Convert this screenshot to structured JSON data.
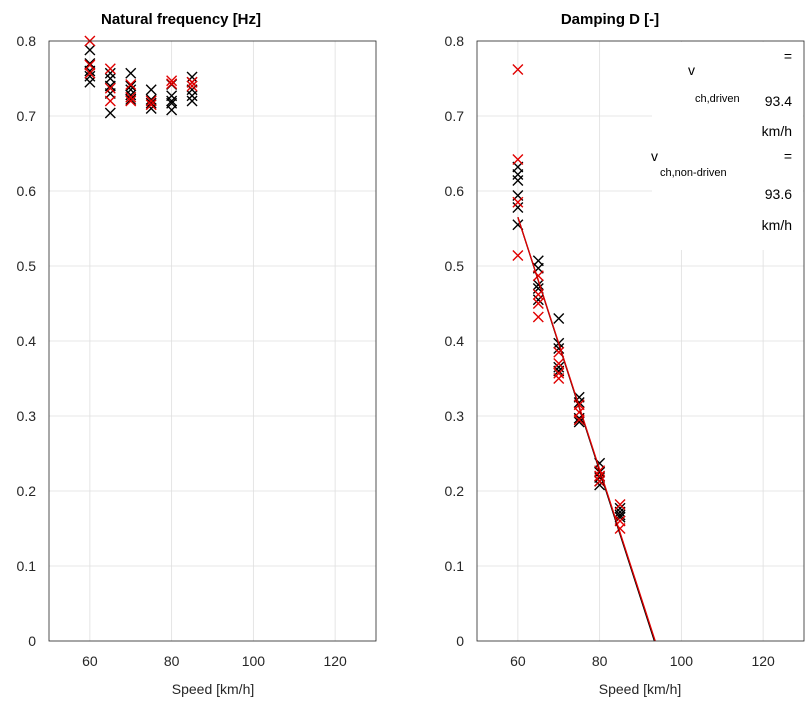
{
  "chart_data": [
    {
      "type": "scatter",
      "title": "Natural frequency [Hz]",
      "xlabel": "Speed [km/h]",
      "ylabel": "",
      "xlim": [
        50,
        130
      ],
      "ylim": [
        0,
        0.8
      ],
      "xticks": [
        "60",
        "80",
        "100",
        "120"
      ],
      "yticks": [
        "0",
        "0.1",
        "0.2",
        "0.3",
        "0.4",
        "0.5",
        "0.6",
        "0.7",
        "0.8"
      ],
      "grid": true,
      "colors": {
        "driven": "#000000",
        "non_driven": "#e00000"
      },
      "series": [
        {
          "color": "#000000",
          "marker": "x",
          "x": [
            60,
            60,
            60,
            60,
            60,
            65,
            65,
            65,
            65,
            65,
            70,
            70,
            70,
            70,
            70,
            75,
            75,
            75,
            75,
            80,
            80,
            80,
            80,
            80,
            85,
            85,
            85,
            85,
            85
          ],
          "y": [
            0.788,
            0.77,
            0.76,
            0.753,
            0.745,
            0.757,
            0.75,
            0.74,
            0.73,
            0.704,
            0.757,
            0.74,
            0.735,
            0.728,
            0.722,
            0.735,
            0.722,
            0.717,
            0.71,
            0.742,
            0.727,
            0.72,
            0.717,
            0.708,
            0.752,
            0.745,
            0.735,
            0.727,
            0.72
          ]
        },
        {
          "color": "#e00000",
          "marker": "x",
          "x": [
            60,
            60,
            60,
            65,
            65,
            65,
            70,
            70,
            70,
            75,
            75,
            80,
            80,
            85,
            85
          ],
          "y": [
            0.8,
            0.768,
            0.757,
            0.763,
            0.737,
            0.72,
            0.742,
            0.725,
            0.72,
            0.72,
            0.715,
            0.747,
            0.743,
            0.745,
            0.74
          ]
        }
      ]
    },
    {
      "type": "scatter",
      "title": "Damping D [-]",
      "xlabel": "Speed [km/h]",
      "ylabel": "",
      "xlim": [
        50,
        130
      ],
      "ylim": [
        0,
        0.8
      ],
      "xticks": [
        "60",
        "80",
        "100",
        "120"
      ],
      "yticks": [
        "0",
        "0.1",
        "0.2",
        "0.3",
        "0.4",
        "0.5",
        "0.6",
        "0.7",
        "0.8"
      ],
      "grid": true,
      "colors": {
        "driven": "#000000",
        "non_driven": "#e00000"
      },
      "series": [
        {
          "color": "#000000",
          "marker": "x",
          "x": [
            60,
            60,
            60,
            60,
            60,
            60,
            65,
            65,
            65,
            65,
            65,
            70,
            70,
            70,
            70,
            70,
            75,
            75,
            75,
            75,
            80,
            80,
            80,
            80,
            80,
            85,
            85,
            85,
            85
          ],
          "y": [
            0.632,
            0.622,
            0.614,
            0.594,
            0.578,
            0.555,
            0.507,
            0.497,
            0.475,
            0.47,
            0.455,
            0.43,
            0.397,
            0.39,
            0.365,
            0.36,
            0.325,
            0.318,
            0.297,
            0.292,
            0.237,
            0.225,
            0.218,
            0.213,
            0.208,
            0.177,
            0.172,
            0.168,
            0.165
          ]
        },
        {
          "color": "#e00000",
          "marker": "x",
          "x": [
            60,
            60,
            60,
            60,
            65,
            65,
            65,
            65,
            70,
            70,
            70,
            70,
            75,
            75,
            75,
            80,
            80,
            80,
            85,
            85,
            85
          ],
          "y": [
            0.762,
            0.642,
            0.585,
            0.514,
            0.462,
            0.45,
            0.432,
            0.487,
            0.385,
            0.37,
            0.357,
            0.35,
            0.315,
            0.305,
            0.295,
            0.227,
            0.22,
            0.213,
            0.182,
            0.16,
            0.15
          ]
        },
        {
          "color": "#000000",
          "type": "line",
          "x": [
            60,
            93.4
          ],
          "y": [
            0.565,
            0
          ]
        },
        {
          "color": "#e00000",
          "type": "line",
          "x": [
            60,
            93.6
          ],
          "y": [
            0.565,
            0
          ]
        }
      ],
      "annotations": {
        "driven_symbol": "v",
        "driven_sub": "ch,driven",
        "driven_eq": "=",
        "driven_value": "93.4",
        "driven_unit": "km/h",
        "nondriven_symbol": "v",
        "nondriven_sub": "ch,non-driven",
        "nondriven_eq": "=",
        "nondriven_value": "93.6",
        "nondriven_unit": "km/h"
      }
    }
  ]
}
